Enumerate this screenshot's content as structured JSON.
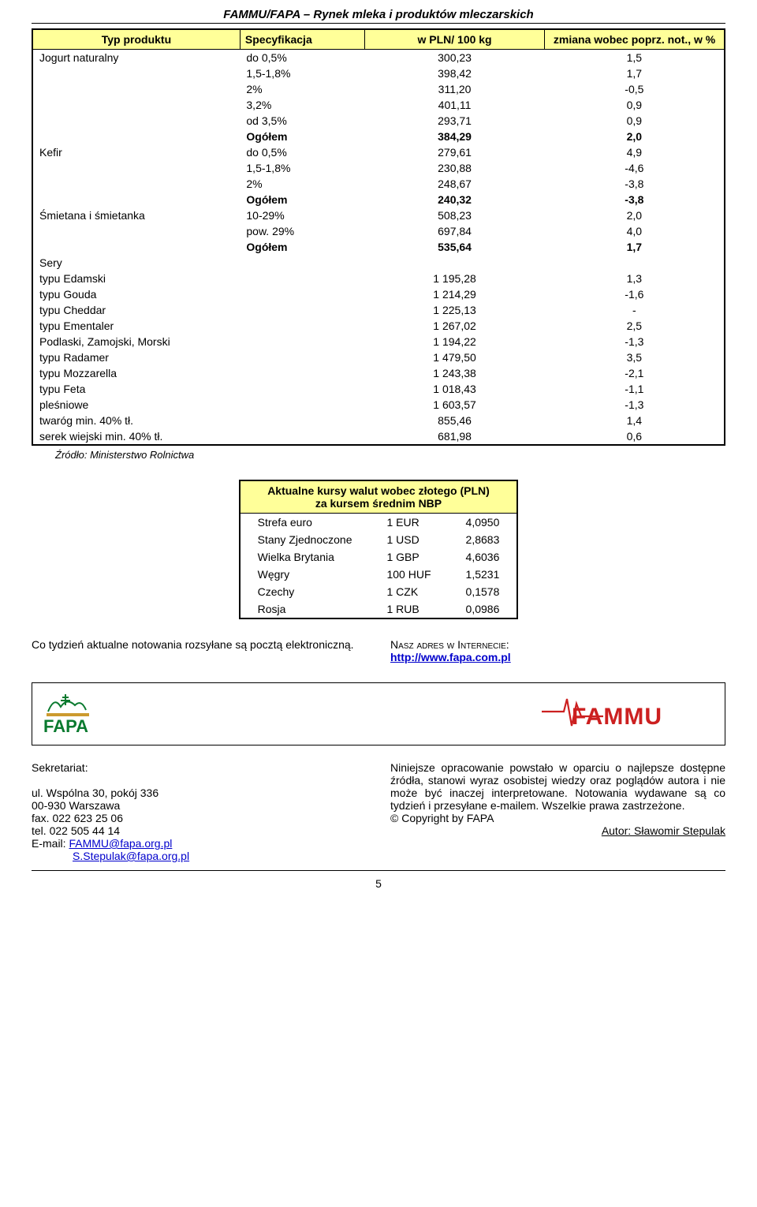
{
  "header": "FAMMU/FAPA – Rynek mleka i produktów mleczarskich",
  "table": {
    "headers": [
      "Typ produktu",
      "Specyfikacja",
      "w PLN/ 100 kg",
      "zmiana wobec poprz. not., w %"
    ],
    "rows": [
      {
        "c1": "Jogurt naturalny",
        "c2": "do 0,5%",
        "c3": "300,23",
        "c4": "1,5",
        "sep": true
      },
      {
        "c1": "",
        "c2": "1,5-1,8%",
        "c3": "398,42",
        "c4": "1,7"
      },
      {
        "c1": "",
        "c2": "2%",
        "c3": "311,20",
        "c4": "-0,5"
      },
      {
        "c1": "",
        "c2": "3,2%",
        "c3": "401,11",
        "c4": "0,9"
      },
      {
        "c1": "",
        "c2": "od 3,5%",
        "c3": "293,71",
        "c4": "0,9"
      },
      {
        "c1": "",
        "c2": "Ogółem",
        "c3": "384,29",
        "c4": "2,0",
        "bold": true
      },
      {
        "c1": "Kefir",
        "c2": "do 0,5%",
        "c3": "279,61",
        "c4": "4,9"
      },
      {
        "c1": "",
        "c2": "1,5-1,8%",
        "c3": "230,88",
        "c4": "-4,6"
      },
      {
        "c1": "",
        "c2": "2%",
        "c3": "248,67",
        "c4": "-3,8"
      },
      {
        "c1": "",
        "c2": "Ogółem",
        "c3": "240,32",
        "c4": "-3,8",
        "bold": true
      },
      {
        "c1": "Śmietana i śmietanka",
        "c2": "10-29%",
        "c3": "508,23",
        "c4": "2,0"
      },
      {
        "c1": "",
        "c2": "pow. 29%",
        "c3": "697,84",
        "c4": "4,0"
      },
      {
        "c1": "",
        "c2": "Ogółem",
        "c3": "535,64",
        "c4": "1,7",
        "bold": true
      },
      {
        "c1": "Sery",
        "c2": "",
        "c3": "",
        "c4": ""
      },
      {
        "c1": "typu Edamski",
        "c2": "",
        "c3": "1 195,28",
        "c4": "1,3"
      },
      {
        "c1": "typu Gouda",
        "c2": "",
        "c3": "1 214,29",
        "c4": "-1,6"
      },
      {
        "c1": "typu Cheddar",
        "c2": "",
        "c3": "1 225,13",
        "c4": "-"
      },
      {
        "c1": "typu Ementaler",
        "c2": "",
        "c3": "1 267,02",
        "c4": "2,5"
      },
      {
        "c1": "Podlaski, Zamojski, Morski",
        "c2": "",
        "c3": "1 194,22",
        "c4": "-1,3"
      },
      {
        "c1": "typu Radamer",
        "c2": "",
        "c3": "1 479,50",
        "c4": "3,5"
      },
      {
        "c1": "typu Mozzarella",
        "c2": "",
        "c3": "1 243,38",
        "c4": "-2,1"
      },
      {
        "c1": "typu Feta",
        "c2": "",
        "c3": "1 018,43",
        "c4": "-1,1"
      },
      {
        "c1": "pleśniowe",
        "c2": "",
        "c3": "1 603,57",
        "c4": "-1,3"
      },
      {
        "c1": "twaróg min. 40% tł.",
        "c2": "",
        "c3": "855,46",
        "c4": "1,4"
      },
      {
        "c1": "serek wiejski min. 40% tł.",
        "c2": "",
        "c3": "681,98",
        "c4": "0,6"
      }
    ]
  },
  "source": "Źródło: Ministerstwo Rolnictwa",
  "fx": {
    "title1": "Aktualne kursy walut wobec złotego (PLN)",
    "title2": "za kursem średnim NBP",
    "rows": [
      {
        "cur": "Strefa euro",
        "unit": "1 EUR",
        "val": "4,0950"
      },
      {
        "cur": "Stany Zjednoczone",
        "unit": "1 USD",
        "val": "2,8683"
      },
      {
        "cur": "Wielka Brytania",
        "unit": "1 GBP",
        "val": "4,6036"
      },
      {
        "cur": "Węgry",
        "unit": "100 HUF",
        "val": "1,5231"
      },
      {
        "cur": "Czechy",
        "unit": "1 CZK",
        "val": "0,1578"
      },
      {
        "cur": "Rosja",
        "unit": "1 RUB",
        "val": "0,0986"
      }
    ]
  },
  "note_left": "Co tydzień aktualne notowania rozsyłane są pocztą elektroniczną.",
  "note_right_label": "Nasz adres w Internecie:",
  "note_right_link": "http://www.fapa.com.pl",
  "contact": {
    "sekr": "Sekretariat:",
    "addr1": "ul. Wspólna 30, pokój 336",
    "addr2": "00-930 Warszawa",
    "fax": "fax.   022 623 25 06",
    "tel": "tel.   022 505 44 14",
    "email_label": "E-mail: ",
    "email1": "FAMMU@fapa.org.pl",
    "email2": "S.Stepulak@fapa.org.pl"
  },
  "disclaimer": "Niniejsze opracowanie powstało w oparciu o najlepsze dostępne źródła, stanowi wyraz osobistej wiedzy oraz poglądów autora i nie może być inaczej interpretowane. Notowania wydawane są co tydzień i przesyłane e-mailem. Wszelkie prawa zastrzeżone.",
  "copyright": "© Copyright by FAPA",
  "author_label": "Autor: Sławomir Stepulak",
  "pagenum": "5"
}
